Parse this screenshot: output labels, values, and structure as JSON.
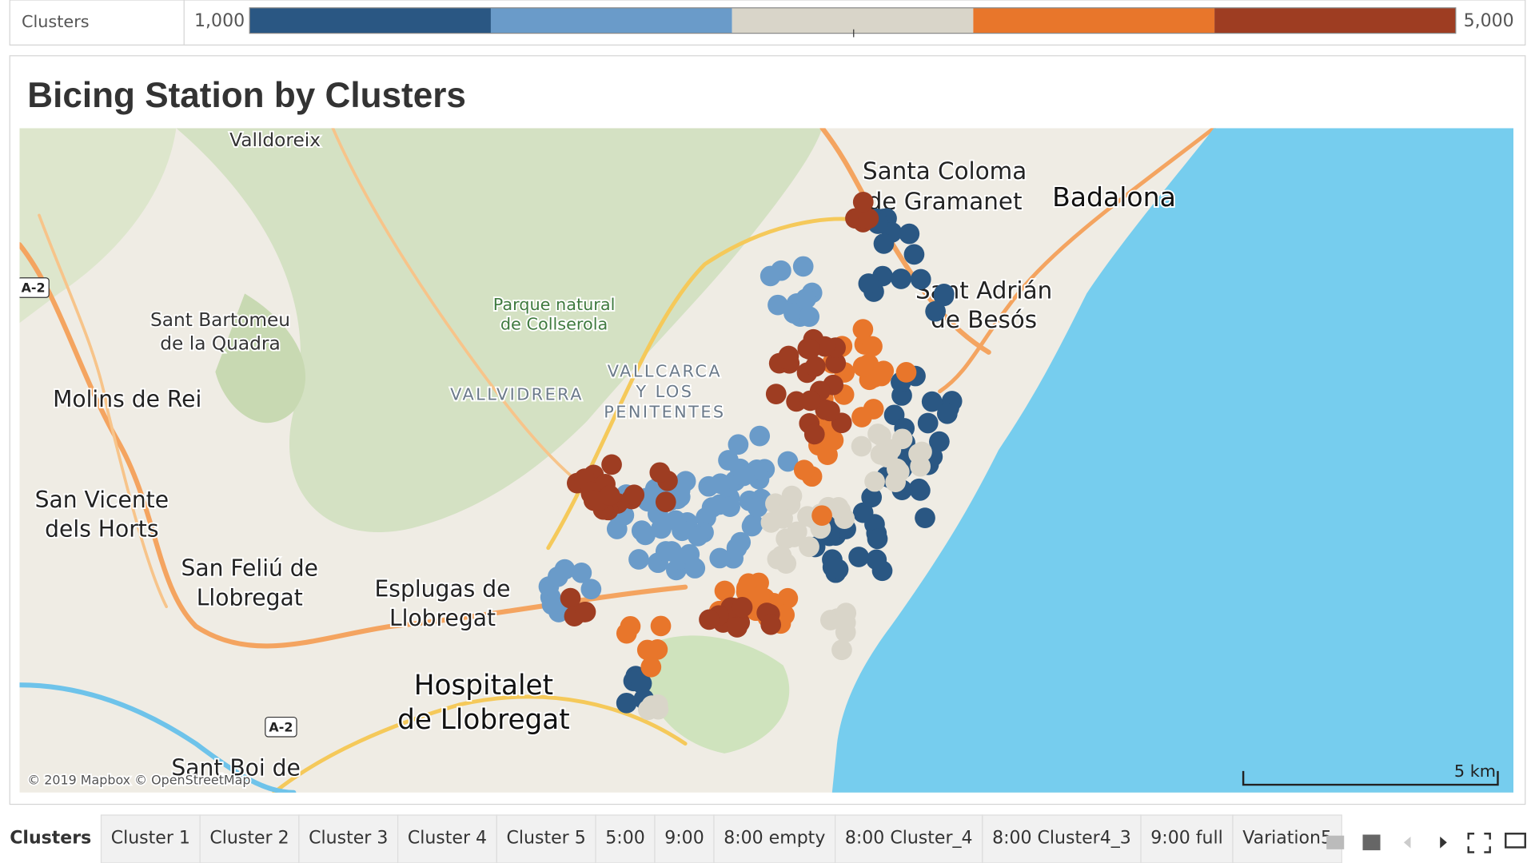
{
  "legend": {
    "title": "Clusters",
    "min": {
      "value": 1000,
      "label": "1,000"
    },
    "max": {
      "value": 5000,
      "label": "5,000"
    },
    "colors": [
      "#2a5783",
      "#6a9bc9",
      "#d9d5c9",
      "#e8762b",
      "#9e3d22"
    ]
  },
  "title": "Bicing Station by Clusters",
  "map": {
    "places": [
      {
        "lines": [
          "Valldoreix"
        ]
      },
      {
        "lines": [
          "Santa Coloma",
          "de Gramanet"
        ]
      },
      {
        "lines": [
          "Badalona"
        ]
      },
      {
        "lines": [
          "Sant Adrián",
          "de Besós"
        ]
      },
      {
        "lines": [
          "Parque natural",
          "de Collserola"
        ]
      },
      {
        "lines": [
          "Sant Bartomeu",
          "de la Quadra"
        ]
      },
      {
        "lines": [
          "Molins de Rei"
        ]
      },
      {
        "lines": [
          "VALLVIDRERA"
        ]
      },
      {
        "lines": [
          "VALLCARCA",
          "Y LOS",
          "PENITENTES"
        ]
      },
      {
        "lines": [
          "San Vicente",
          "dels Horts"
        ]
      },
      {
        "lines": [
          "San Feliú de",
          "Llobregat"
        ]
      },
      {
        "lines": [
          "Esplugas de",
          "Llobregat"
        ]
      },
      {
        "lines": [
          "Hospitalet",
          "de Llobregat"
        ]
      },
      {
        "lines": [
          "Sant Boi de"
        ]
      }
    ],
    "road_shields": [
      "A-2",
      "A-2"
    ],
    "attribution": "© 2019 Mapbox © OpenStreetMap",
    "scale": "5 km"
  },
  "tabs": [
    "Clusters",
    "Cluster 1",
    "Cluster 2",
    "Cluster 3",
    "Cluster 4",
    "Cluster 5",
    "5:00",
    "9:00",
    "8:00 empty",
    "8:00 Cluster_4",
    "8:00 Cluster4_3",
    "9:00 full",
    "Variation5"
  ]
}
